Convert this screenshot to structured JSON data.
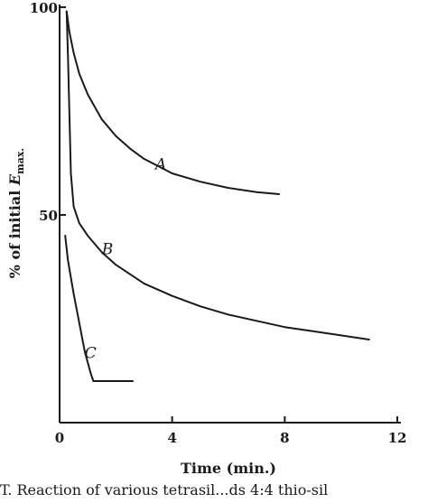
{
  "chart_data": {
    "type": "line",
    "title": "",
    "xlabel": "Time (min.)",
    "ylabel_main": "% of initial ",
    "ylabel_symbol": "E",
    "ylabel_sub": "max.",
    "xlim": [
      0,
      12
    ],
    "ylim": [
      0,
      100
    ],
    "x_ticks": [
      0,
      4,
      8,
      12
    ],
    "y_ticks": [
      50,
      100
    ],
    "x_tick_labels": [
      "0",
      "4",
      "8",
      "12"
    ],
    "y_tick_labels": [
      "50",
      "100"
    ],
    "grid": false,
    "series": [
      {
        "name": "A",
        "x": [
          0.25,
          0.35,
          0.5,
          0.7,
          1.0,
          1.5,
          2.0,
          2.5,
          3.0,
          4.0,
          5.0,
          6.0,
          7.0,
          7.8
        ],
        "y": [
          99,
          94,
          89,
          84,
          79,
          73,
          69,
          66,
          63.5,
          60,
          58,
          56.5,
          55.5,
          55
        ]
      },
      {
        "name": "B",
        "x": [
          0.25,
          0.3,
          0.35,
          0.4,
          0.5,
          0.7,
          1.0,
          1.5,
          2.0,
          3.0,
          4.0,
          5.0,
          6.0,
          7.0,
          8.0,
          9.0,
          10.0,
          11.0
        ],
        "y": [
          99,
          88,
          74,
          60,
          52,
          48,
          45,
          41,
          38,
          33.5,
          30.5,
          28,
          26,
          24.5,
          23,
          22,
          21,
          20
        ]
      },
      {
        "name": "C",
        "x": [
          0.2,
          0.3,
          0.5,
          0.7,
          0.9,
          1.1,
          1.2,
          1.5,
          2.0,
          2.6
        ],
        "y": [
          45,
          39,
          31,
          24,
          17,
          12,
          10,
          10,
          10,
          10
        ]
      }
    ],
    "label_anchor": {
      "A": [
        3.6,
        61
      ],
      "B": [
        1.7,
        40.5
      ],
      "C": [
        1.1,
        15.5
      ]
    }
  },
  "caption": {
    "text": "T. Reaction of various tetrasil...ds 4:4 thio-sil"
  }
}
